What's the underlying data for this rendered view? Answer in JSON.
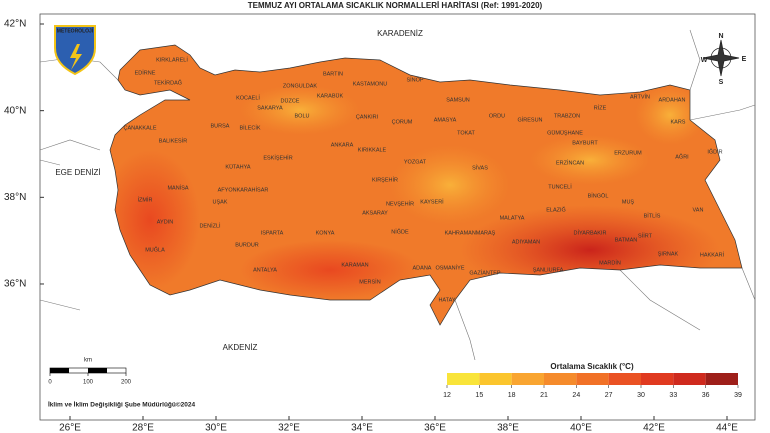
{
  "header": {
    "title": "TEMMUZ AYI ORTALAMA SICAKLIK NORMALLERİ HARİTASI (Ref: 1991-2020)"
  },
  "axes": {
    "lat_ticks": [
      {
        "value": 42,
        "label": "42°N"
      },
      {
        "value": 40,
        "label": "40°N"
      },
      {
        "value": 38,
        "label": "38°N"
      },
      {
        "value": 36,
        "label": "36°N"
      }
    ],
    "lon_ticks": [
      {
        "value": 26,
        "label": "26°E"
      },
      {
        "value": 28,
        "label": "28°E"
      },
      {
        "value": 30,
        "label": "30°E"
      },
      {
        "value": 32,
        "label": "32°E"
      },
      {
        "value": 34,
        "label": "34°E"
      },
      {
        "value": 36,
        "label": "36°E"
      },
      {
        "value": 38,
        "label": "38°E"
      },
      {
        "value": 40,
        "label": "40°E"
      },
      {
        "value": 42,
        "label": "42°E"
      },
      {
        "value": 44,
        "label": "44°E"
      }
    ]
  },
  "logo": {
    "text": "METEOROLOJİ"
  },
  "compass": [
    "N",
    "W",
    "E",
    "S"
  ],
  "seas": [
    "KARADENİZ",
    "EGE DENİZİ",
    "AKDENİZ"
  ],
  "provinces": [
    "KIRKLARELİ",
    "EDİRNE",
    "TEKİRDAĞ",
    "ÇANAKKALE",
    "BALIKESİR",
    "BURSA",
    "BİLECİK",
    "KOCAELİ",
    "SAKARYA",
    "DÜZCE",
    "ZONGULDAK",
    "BARTIN",
    "KARABÜK",
    "KASTAMONU",
    "SİNOP",
    "BOLU",
    "ÇANKIRI",
    "SAMSUN",
    "ÇORUM",
    "AMASYA",
    "ORDU",
    "GİRESUN",
    "TRABZON",
    "RİZE",
    "ARTVİN",
    "ARDAHAN",
    "KARS",
    "GÜMÜŞHANE",
    "BAYBURT",
    "ERZURUM",
    "AĞRI",
    "IĞDIR",
    "TOKAT",
    "MANİSA",
    "İZMİR",
    "UŞAK",
    "KÜTAHYA",
    "ESKİŞEHİR",
    "ANKARA",
    "KIRIKKALE",
    "YOZGAT",
    "KIRŞEHİR",
    "SİVAS",
    "ERZİNCAN",
    "TUNCELİ",
    "BİNGÖL",
    "MUŞ",
    "BİTLİS",
    "VAN",
    "ELAZIĞ",
    "MALATYA",
    "AFYONKARAHİSAR",
    "AKSARAY",
    "NEVŞEHİR",
    "KAYSERİ",
    "AYDIN",
    "DENİZLİ",
    "MUĞLA",
    "BURDUR",
    "ISPARTA",
    "KONYA",
    "NİĞDE",
    "KAHRAMANMARAŞ",
    "ADIYAMAN",
    "DİYARBAKIR",
    "BATMAN",
    "SİİRT",
    "ŞIRNAK",
    "HAKKARİ",
    "MARDİN",
    "ŞANLIURFA",
    "GAZİANTEP",
    "OSMANİYE",
    "ADANA",
    "HATAY",
    "MERSİN",
    "KARAMAN",
    "ANTALYA"
  ],
  "scale_bar": {
    "unit": "km",
    "ticks": [
      0,
      100,
      200
    ]
  },
  "legend": {
    "title": "Ortalama Sıcaklık (°C)",
    "ticks": [
      12,
      15,
      18,
      21,
      24,
      27,
      30,
      33,
      36,
      39
    ],
    "colors": [
      "#f9e43a",
      "#fbc52d",
      "#f9a531",
      "#f58b2c",
      "#f17127",
      "#ea5223",
      "#e03a20",
      "#cf2a1e",
      "#9e1f1a"
    ]
  },
  "credit": "İklim ve İklim Değişikliği Şube Müdürlüğü©2024"
}
